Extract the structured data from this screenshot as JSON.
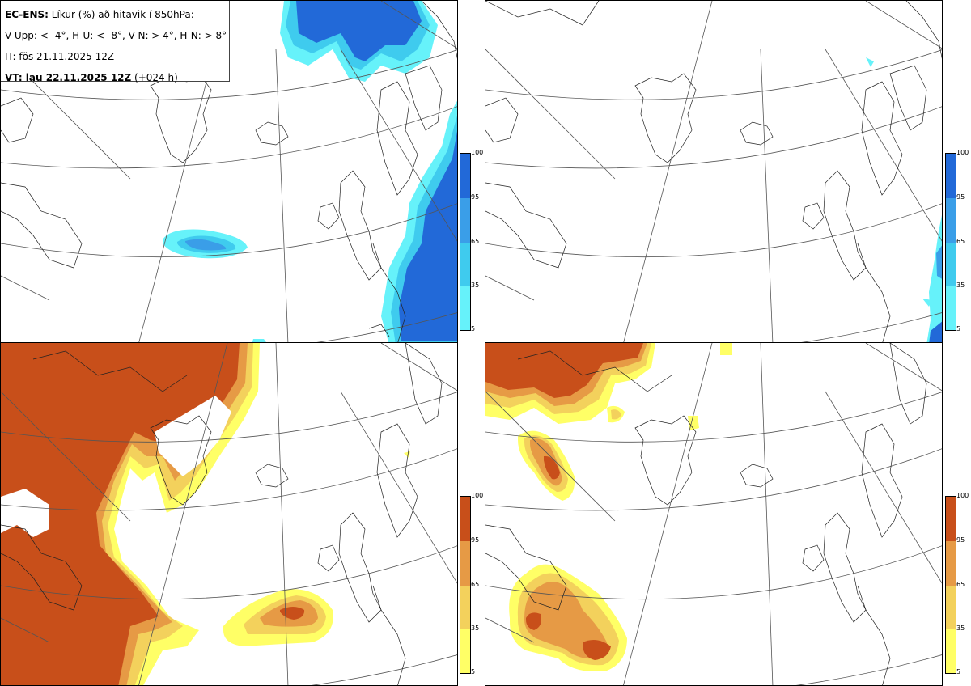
{
  "header": {
    "line1_bold": "EC-ENS:",
    "line1_rest": " Líkur (%) að hitavik í 850hPa:",
    "line2": "V-Upp: < -4°, H-U: < -8°, V-N: > 4°, H-N: > 8°",
    "line3": "IT: fös 21.11.2025 12Z",
    "line4_bold": "VT: lau 22.11.2025 12Z",
    "line4_rest": " (+024 h)"
  },
  "colorbars": {
    "cold": {
      "colors": [
        "#66f2fa",
        "#3fcbee",
        "#3a9ee8",
        "#2269d8"
      ],
      "ticks": [
        "100",
        "95",
        "65",
        "35",
        "5"
      ]
    },
    "warm": {
      "colors": [
        "#ffff66",
        "#f3d15c",
        "#e69a45",
        "#c84f1a"
      ],
      "ticks": [
        "100",
        "95",
        "65",
        "35",
        "5"
      ]
    }
  },
  "panels": [
    {
      "id": "v-upp",
      "scheme": "cold",
      "threshold": "< -4°"
    },
    {
      "id": "h-u",
      "scheme": "cold",
      "threshold": "< -8°"
    },
    {
      "id": "v-n",
      "scheme": "warm",
      "threshold": "> 4°"
    },
    {
      "id": "h-n",
      "scheme": "warm",
      "threshold": "> 8°"
    }
  ]
}
